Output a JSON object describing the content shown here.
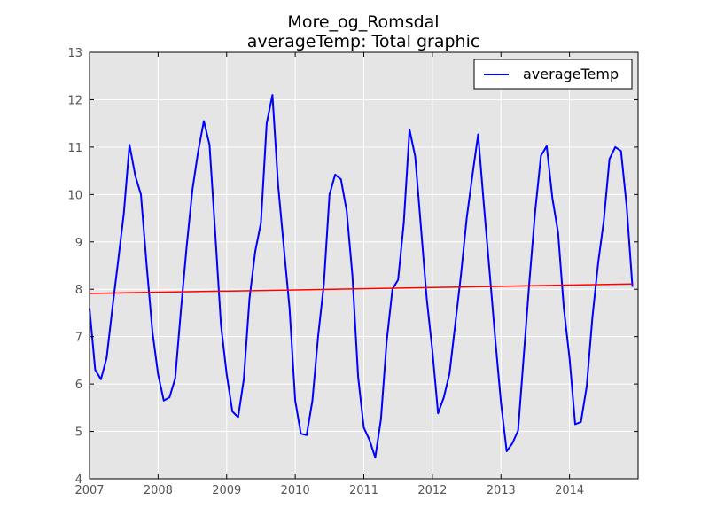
{
  "chart_data": {
    "type": "line",
    "title_line1": "More_og_Romsdal",
    "title_line2": "averageTemp: Total graphic",
    "xlabel": "",
    "ylabel": "",
    "xlim": [
      2007,
      2015
    ],
    "ylim": [
      4,
      13
    ],
    "x_ticks": [
      "2007",
      "2008",
      "2009",
      "2010",
      "2011",
      "2012",
      "2013",
      "2014"
    ],
    "y_ticks": [
      "4",
      "5",
      "6",
      "7",
      "8",
      "9",
      "10",
      "11",
      "12",
      "13"
    ],
    "grid": true,
    "legend_position": "top-right",
    "series": [
      {
        "name": "averageTemp",
        "color": "#0000ff",
        "x": [
          2007.0,
          2007.083,
          2007.167,
          2007.25,
          2007.333,
          2007.417,
          2007.5,
          2007.583,
          2007.667,
          2007.75,
          2007.833,
          2007.917,
          2008.0,
          2008.083,
          2008.167,
          2008.25,
          2008.333,
          2008.417,
          2008.5,
          2008.583,
          2008.667,
          2008.75,
          2008.833,
          2008.917,
          2009.0,
          2009.083,
          2009.167,
          2009.25,
          2009.333,
          2009.417,
          2009.5,
          2009.583,
          2009.667,
          2009.75,
          2009.833,
          2009.917,
          2010.0,
          2010.083,
          2010.167,
          2010.25,
          2010.333,
          2010.417,
          2010.5,
          2010.583,
          2010.667,
          2010.75,
          2010.833,
          2010.917,
          2011.0,
          2011.083,
          2011.167,
          2011.25,
          2011.333,
          2011.417,
          2011.5,
          2011.583,
          2011.667,
          2011.75,
          2011.833,
          2011.917,
          2012.0,
          2012.083,
          2012.167,
          2012.25,
          2012.333,
          2012.417,
          2012.5,
          2012.583,
          2012.667,
          2012.75,
          2012.833,
          2012.917,
          2013.0,
          2013.083,
          2013.167,
          2013.25,
          2013.333,
          2013.417,
          2013.5,
          2013.583,
          2013.667,
          2013.75,
          2013.833,
          2013.917,
          2014.0,
          2014.083,
          2014.167,
          2014.25,
          2014.333,
          2014.417,
          2014.5,
          2014.583,
          2014.667,
          2014.75,
          2014.833,
          2014.917
        ],
        "y": [
          7.6,
          6.3,
          6.1,
          6.55,
          7.6,
          8.6,
          9.6,
          11.05,
          10.4,
          10.0,
          8.5,
          7.1,
          6.2,
          5.65,
          5.72,
          6.12,
          7.55,
          8.9,
          10.1,
          10.9,
          11.55,
          11.05,
          9.2,
          7.25,
          6.2,
          5.42,
          5.3,
          6.1,
          7.8,
          8.8,
          9.4,
          11.5,
          12.1,
          10.2,
          8.9,
          7.6,
          5.65,
          4.95,
          4.92,
          5.65,
          7.0,
          8.1,
          10.0,
          10.42,
          10.32,
          9.65,
          8.3,
          6.15,
          5.08,
          4.82,
          4.45,
          5.25,
          6.9,
          8.0,
          8.2,
          9.4,
          11.37,
          10.8,
          9.3,
          7.8,
          6.7,
          5.38,
          5.72,
          6.22,
          7.25,
          8.3,
          9.5,
          10.4,
          11.27,
          9.8,
          8.4,
          6.95,
          5.6,
          4.58,
          4.75,
          5.02,
          6.6,
          8.2,
          9.65,
          10.82,
          11.02,
          9.92,
          9.2,
          7.6,
          6.55,
          5.15,
          5.2,
          5.95,
          7.4,
          8.55,
          9.45,
          10.75,
          11.0,
          10.92,
          9.75,
          8.05
        ]
      },
      {
        "color": "#ff0000",
        "x": [
          2007.0,
          2014.917
        ],
        "y": [
          7.91,
          8.11
        ]
      }
    ]
  }
}
